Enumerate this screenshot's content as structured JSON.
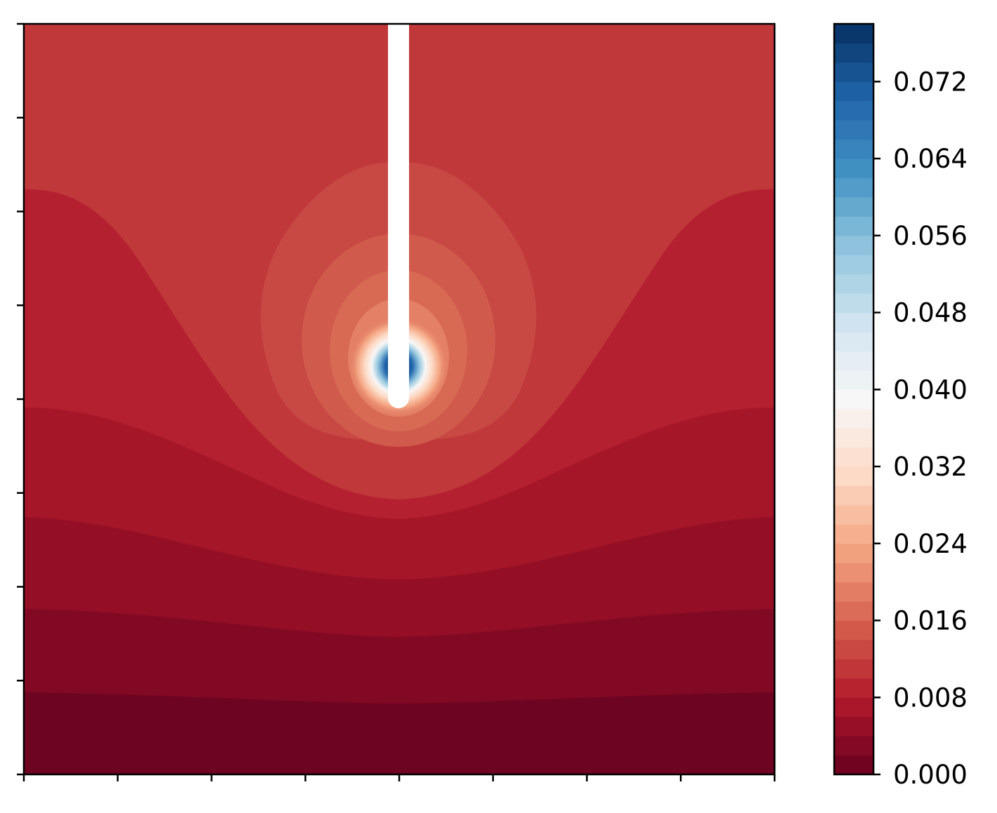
{
  "chart_data": {
    "type": "heatmap",
    "subtype": "filled-contour",
    "title": "",
    "xlabel": "",
    "ylabel": "",
    "x_tick_count": 9,
    "y_tick_count": 9,
    "x_tick_labels": [],
    "y_tick_labels": [],
    "colormap": "RdBu",
    "colorbar": {
      "range": [
        0.0,
        0.078
      ],
      "levels": 39,
      "tick_labels": [
        "0.000",
        "0.008",
        "0.016",
        "0.024",
        "0.032",
        "0.040",
        "0.048",
        "0.056",
        "0.064",
        "0.072"
      ]
    },
    "regions": [
      {
        "name": "bottom band",
        "level_value": 0.001
      },
      {
        "name": "lower band",
        "level_value": 0.003
      },
      {
        "name": "lower-middle band",
        "level_value": 0.005
      },
      {
        "name": "middle band",
        "level_value": 0.007
      },
      {
        "name": "upper-middle band",
        "level_value": 0.009
      },
      {
        "name": "top band",
        "level_value": 0.011
      },
      {
        "name": "halo around tip",
        "level_value": 0.013
      },
      {
        "name": "hotspot at needle tip",
        "peak_value": 0.078
      }
    ],
    "annotations": [
      "white vertical needle entering from top edge, ending at the hotspot"
    ]
  }
}
